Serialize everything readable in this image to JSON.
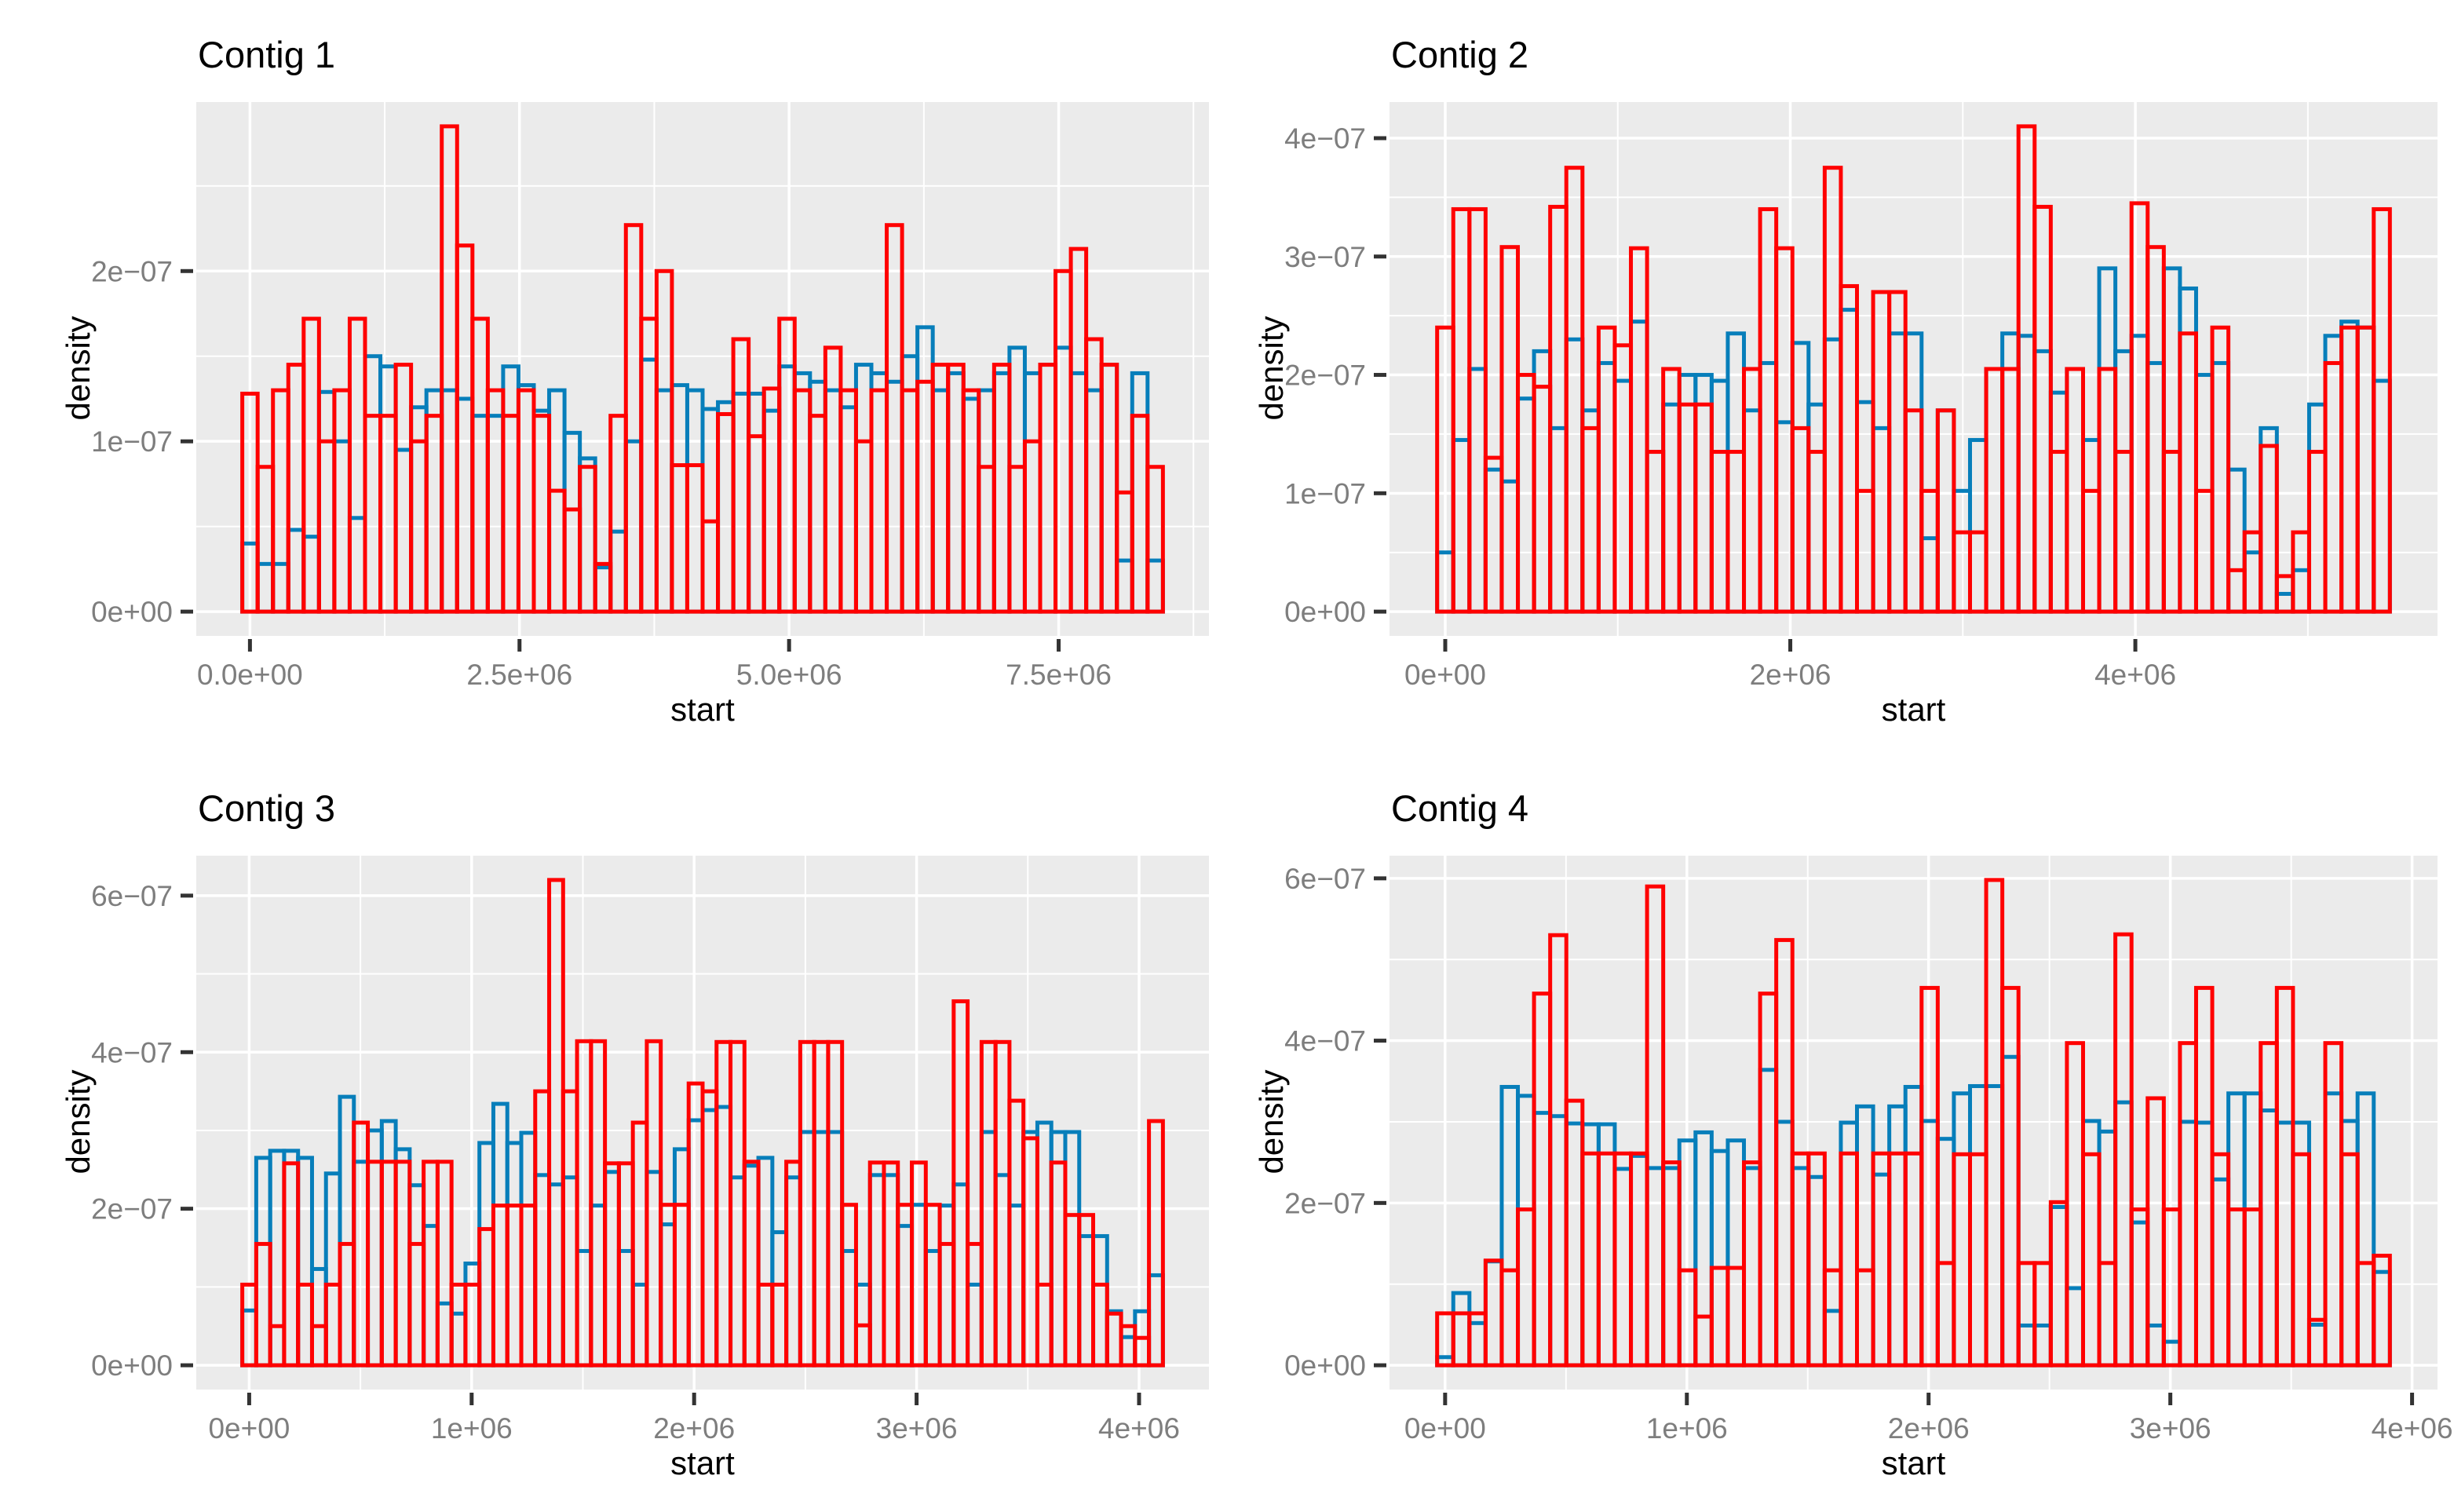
{
  "figure": {
    "background": "#FFFFFF",
    "panel_background": "#EBEBEB",
    "grid_color": "#FFFFFF",
    "tick_label_color": "#7E7E7E",
    "tick_mark_color": "#333333",
    "title_color": "#000000",
    "red_series_color": "#FF0000",
    "blue_series_color": "#077EBA",
    "value_scale_y": "1e-07",
    "value_scale_x": "1e+06"
  },
  "chart_data": [
    {
      "type": "histogram-outline-overlay",
      "title": "Contig 1",
      "xlabel": "start",
      "ylabel": "density",
      "legend": "none",
      "grid": "major-minor-white-on-gray",
      "x_ticks": [
        {
          "label": "0.0e+00",
          "value": 0
        },
        {
          "label": "2.5e+06",
          "value": 2.5
        },
        {
          "label": "5.0e+06",
          "value": 5.0
        },
        {
          "label": "7.5e+06",
          "value": 7.5
        }
      ],
      "y_ticks": [
        {
          "label": "0e+00",
          "value": 0
        },
        {
          "label": "1e−07",
          "value": 1
        },
        {
          "label": "2e−07",
          "value": 2
        }
      ],
      "bins": {
        "start": -0.071,
        "width": 0.1423,
        "count": 60
      },
      "series": [
        {
          "name": "red",
          "color": "#FF0000",
          "values": [
            1.28,
            0.85,
            1.3,
            1.45,
            1.72,
            1.0,
            1.3,
            1.72,
            1.15,
            1.15,
            1.45,
            1.0,
            1.15,
            2.85,
            2.15,
            1.72,
            1.3,
            1.15,
            1.3,
            1.15,
            0.71,
            0.6,
            0.85,
            0.28,
            1.15,
            2.27,
            1.72,
            2.0,
            0.86,
            0.86,
            0.53,
            1.16,
            1.6,
            1.03,
            1.31,
            1.72,
            1.3,
            1.15,
            1.55,
            1.3,
            1.0,
            1.3,
            2.27,
            1.3,
            1.35,
            1.45,
            1.45,
            1.3,
            0.85,
            1.45,
            0.85,
            1.0,
            1.45,
            2.0,
            2.13,
            1.6,
            1.45,
            0.7,
            1.15,
            0.85
          ]
        },
        {
          "name": "blue",
          "color": "#077EBA",
          "values": [
            0.4,
            0.28,
            0.28,
            0.48,
            0.44,
            1.29,
            1.0,
            0.55,
            1.5,
            1.44,
            0.95,
            1.2,
            1.3,
            1.3,
            1.25,
            1.15,
            1.15,
            1.44,
            1.33,
            1.18,
            1.3,
            1.05,
            0.9,
            0.26,
            0.47,
            1.0,
            1.48,
            1.3,
            1.33,
            1.3,
            1.19,
            1.23,
            1.28,
            1.28,
            1.18,
            1.44,
            1.4,
            1.35,
            1.3,
            1.2,
            1.45,
            1.4,
            1.35,
            1.5,
            1.67,
            1.3,
            1.4,
            1.25,
            1.3,
            1.4,
            1.55,
            1.4,
            1.45,
            1.55,
            1.4,
            1.3,
            1.45,
            0.3,
            1.4,
            0.3
          ]
        }
      ]
    },
    {
      "type": "histogram-outline-overlay",
      "title": "Contig 2",
      "xlabel": "start",
      "ylabel": "density",
      "legend": "none",
      "grid": "major-minor-white-on-gray",
      "x_ticks": [
        {
          "label": "0e+00",
          "value": 0
        },
        {
          "label": "2e+06",
          "value": 2
        },
        {
          "label": "4e+06",
          "value": 4
        }
      ],
      "y_ticks": [
        {
          "label": "0e+00",
          "value": 0
        },
        {
          "label": "1e−07",
          "value": 1
        },
        {
          "label": "2e−07",
          "value": 2
        },
        {
          "label": "3e−07",
          "value": 3
        },
        {
          "label": "4e−07",
          "value": 4
        }
      ],
      "bins": {
        "start": -0.047,
        "width": 0.0936,
        "count": 59
      },
      "series": [
        {
          "name": "red",
          "color": "#FF0000",
          "values": [
            2.4,
            3.4,
            3.4,
            1.3,
            3.08,
            2.0,
            1.9,
            3.42,
            3.75,
            1.55,
            2.4,
            2.25,
            3.07,
            1.35,
            2.05,
            1.75,
            1.75,
            1.35,
            1.35,
            2.05,
            3.4,
            3.07,
            1.55,
            1.35,
            3.75,
            2.75,
            1.02,
            2.7,
            2.7,
            1.7,
            1.02,
            1.7,
            0.67,
            0.67,
            2.05,
            2.05,
            4.1,
            3.42,
            1.35,
            2.05,
            1.02,
            2.05,
            1.35,
            3.45,
            3.08,
            1.35,
            2.35,
            1.02,
            2.4,
            0.35,
            0.67,
            1.4,
            0.3,
            0.67,
            1.35,
            2.1,
            2.4,
            2.4,
            3.4
          ]
        },
        {
          "name": "blue",
          "color": "#077EBA",
          "values": [
            0.5,
            1.45,
            2.05,
            1.2,
            1.1,
            1.8,
            2.2,
            1.55,
            2.3,
            1.7,
            2.1,
            1.95,
            2.45,
            1.35,
            1.75,
            2.0,
            2.0,
            1.95,
            2.35,
            1.7,
            2.1,
            1.6,
            2.27,
            1.75,
            2.3,
            2.55,
            1.77,
            1.55,
            2.35,
            2.35,
            0.62,
            1.7,
            1.02,
            1.45,
            2.05,
            2.35,
            2.33,
            2.2,
            1.85,
            2.05,
            1.45,
            2.9,
            2.2,
            2.33,
            2.1,
            2.9,
            2.73,
            2.0,
            2.1,
            1.2,
            0.5,
            1.55,
            0.15,
            0.35,
            1.75,
            2.33,
            2.45,
            2.4,
            1.95
          ]
        }
      ]
    },
    {
      "type": "histogram-outline-overlay",
      "title": "Contig 3",
      "xlabel": "start",
      "ylabel": "density",
      "legend": "none",
      "grid": "major-minor-white-on-gray",
      "x_ticks": [
        {
          "label": "0e+00",
          "value": 0
        },
        {
          "label": "1e+06",
          "value": 1
        },
        {
          "label": "2e+06",
          "value": 2
        },
        {
          "label": "3e+06",
          "value": 3
        },
        {
          "label": "4e+06",
          "value": 4
        }
      ],
      "y_ticks": [
        {
          "label": "0e+00",
          "value": 0
        },
        {
          "label": "2e−07",
          "value": 2
        },
        {
          "label": "4e−07",
          "value": 4
        },
        {
          "label": "6e−07",
          "value": 6
        }
      ],
      "bins": {
        "start": -0.031,
        "width": 0.0627,
        "count": 66
      },
      "series": [
        {
          "name": "red",
          "color": "#FF0000",
          "values": [
            1.03,
            1.55,
            0.5,
            2.58,
            1.03,
            0.5,
            1.03,
            1.55,
            3.1,
            2.6,
            2.6,
            2.6,
            1.55,
            2.6,
            2.6,
            1.03,
            1.03,
            1.74,
            2.04,
            2.04,
            2.04,
            3.5,
            6.2,
            3.5,
            4.14,
            4.14,
            2.58,
            2.58,
            3.1,
            4.14,
            2.05,
            2.05,
            3.6,
            3.5,
            4.13,
            4.13,
            2.6,
            1.03,
            1.03,
            2.6,
            4.13,
            4.13,
            4.13,
            2.05,
            0.51,
            2.59,
            2.59,
            2.05,
            2.59,
            2.05,
            1.55,
            4.65,
            1.55,
            4.13,
            4.13,
            3.38,
            2.9,
            1.03,
            2.59,
            1.92,
            1.92,
            1.03,
            0.66,
            0.5,
            0.35,
            3.12
          ]
        },
        {
          "name": "blue",
          "color": "#077EBA",
          "values": [
            0.7,
            2.65,
            2.74,
            2.74,
            2.65,
            1.23,
            2.45,
            3.43,
            2.6,
            3.0,
            3.12,
            2.76,
            2.3,
            1.78,
            0.79,
            0.66,
            1.3,
            2.84,
            3.34,
            2.84,
            2.97,
            2.43,
            2.31,
            2.4,
            1.46,
            2.04,
            2.47,
            1.46,
            1.03,
            2.47,
            1.8,
            2.76,
            3.13,
            3.26,
            3.3,
            2.4,
            2.55,
            2.65,
            1.7,
            2.4,
            2.98,
            2.98,
            2.98,
            1.46,
            1.03,
            2.43,
            2.43,
            1.78,
            2.05,
            1.46,
            2.04,
            2.31,
            1.03,
            2.98,
            2.43,
            2.04,
            2.98,
            3.1,
            2.98,
            2.98,
            1.65,
            1.65,
            0.69,
            0.36,
            0.69,
            1.15
          ]
        }
      ]
    },
    {
      "type": "histogram-outline-overlay",
      "title": "Contig 4",
      "xlabel": "start",
      "ylabel": "density",
      "legend": "none",
      "grid": "major-minor-white-on-gray",
      "x_ticks": [
        {
          "label": "0e+00",
          "value": 0
        },
        {
          "label": "1e+06",
          "value": 1
        },
        {
          "label": "2e+06",
          "value": 2
        },
        {
          "label": "3e+06",
          "value": 3
        },
        {
          "label": "4e+06",
          "value": 4
        }
      ],
      "y_ticks": [
        {
          "label": "0e+00",
          "value": 0
        },
        {
          "label": "2e−07",
          "value": 2
        },
        {
          "label": "4e−07",
          "value": 4
        },
        {
          "label": "6e−07",
          "value": 6
        }
      ],
      "bins": {
        "start": -0.033,
        "width": 0.0668,
        "count": 59
      },
      "series": [
        {
          "name": "red",
          "color": "#FF0000",
          "values": [
            0.64,
            0.64,
            0.64,
            1.29,
            1.17,
            1.92,
            4.58,
            5.3,
            3.26,
            2.61,
            2.61,
            2.61,
            2.61,
            5.9,
            2.5,
            1.17,
            0.6,
            1.2,
            1.2,
            2.5,
            4.58,
            5.24,
            2.61,
            2.61,
            1.17,
            2.61,
            1.17,
            2.61,
            2.61,
            2.61,
            4.65,
            1.26,
            2.6,
            2.6,
            5.98,
            4.65,
            1.26,
            1.26,
            2.01,
            3.97,
            2.6,
            1.26,
            5.31,
            1.92,
            3.29,
            1.92,
            3.97,
            4.65,
            2.6,
            1.92,
            1.92,
            3.97,
            4.65,
            2.6,
            0.56,
            3.97,
            2.6,
            1.26,
            1.35
          ]
        },
        {
          "name": "blue",
          "color": "#077EBA",
          "values": [
            0.1,
            0.89,
            0.52,
            1.28,
            3.43,
            3.32,
            3.11,
            3.07,
            2.98,
            2.97,
            2.97,
            2.42,
            2.58,
            2.43,
            2.43,
            2.77,
            2.87,
            2.64,
            2.77,
            2.43,
            3.64,
            3.0,
            2.43,
            2.32,
            0.67,
            2.99,
            3.19,
            2.35,
            3.19,
            3.43,
            3.01,
            2.79,
            3.35,
            3.44,
            3.44,
            3.8,
            0.49,
            0.49,
            1.95,
            0.95,
            3.01,
            2.88,
            3.24,
            1.76,
            0.49,
            0.29,
            3.0,
            2.99,
            2.29,
            3.35,
            3.35,
            3.14,
            2.99,
            2.99,
            0.5,
            3.35,
            3.01,
            3.35,
            1.15
          ]
        }
      ]
    }
  ]
}
